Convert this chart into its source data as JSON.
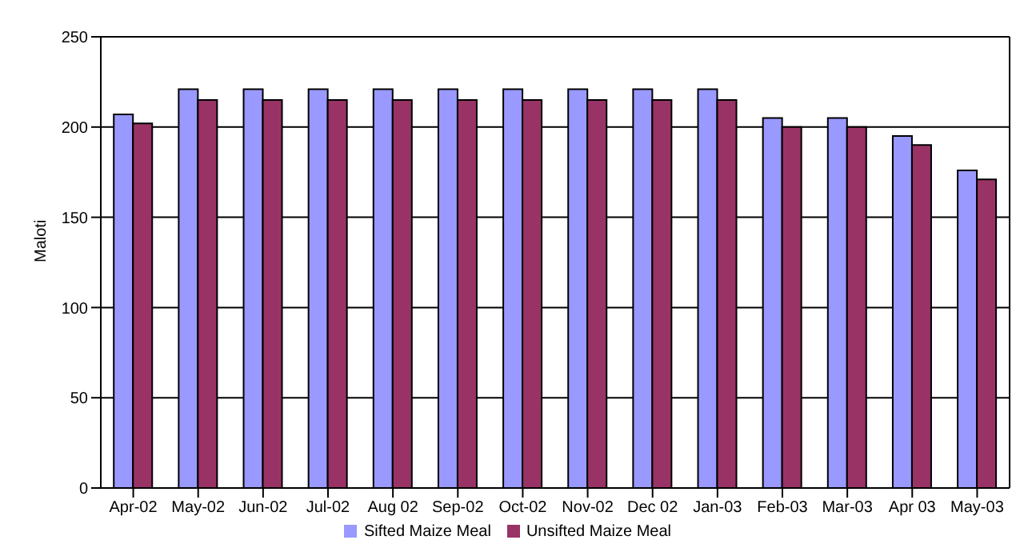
{
  "chart_data": {
    "type": "bar",
    "ylabel": "Maloti",
    "categories": [
      "Apr-02",
      "May-02",
      "Jun-02",
      "Jul-02",
      "Aug 02",
      "Sep-02",
      "Oct-02",
      "Nov-02",
      "Dec 02",
      "Jan-03",
      "Feb-03",
      "Mar-03",
      "Apr 03",
      "May-03"
    ],
    "series": [
      {
        "name": "Sifted Maize Meal",
        "color": "#9999ff",
        "values": [
          207,
          221,
          221,
          221,
          221,
          221,
          221,
          221,
          221,
          221,
          205,
          205,
          195,
          176
        ]
      },
      {
        "name": "Unsifted Maize Meal",
        "color": "#993366",
        "values": [
          202,
          215,
          215,
          215,
          215,
          215,
          215,
          215,
          215,
          215,
          200,
          200,
          190,
          171
        ]
      }
    ],
    "ylim": [
      0,
      250
    ],
    "yticks": [
      0,
      50,
      100,
      150,
      200,
      250
    ],
    "grid": "y",
    "legend": "bottom"
  }
}
